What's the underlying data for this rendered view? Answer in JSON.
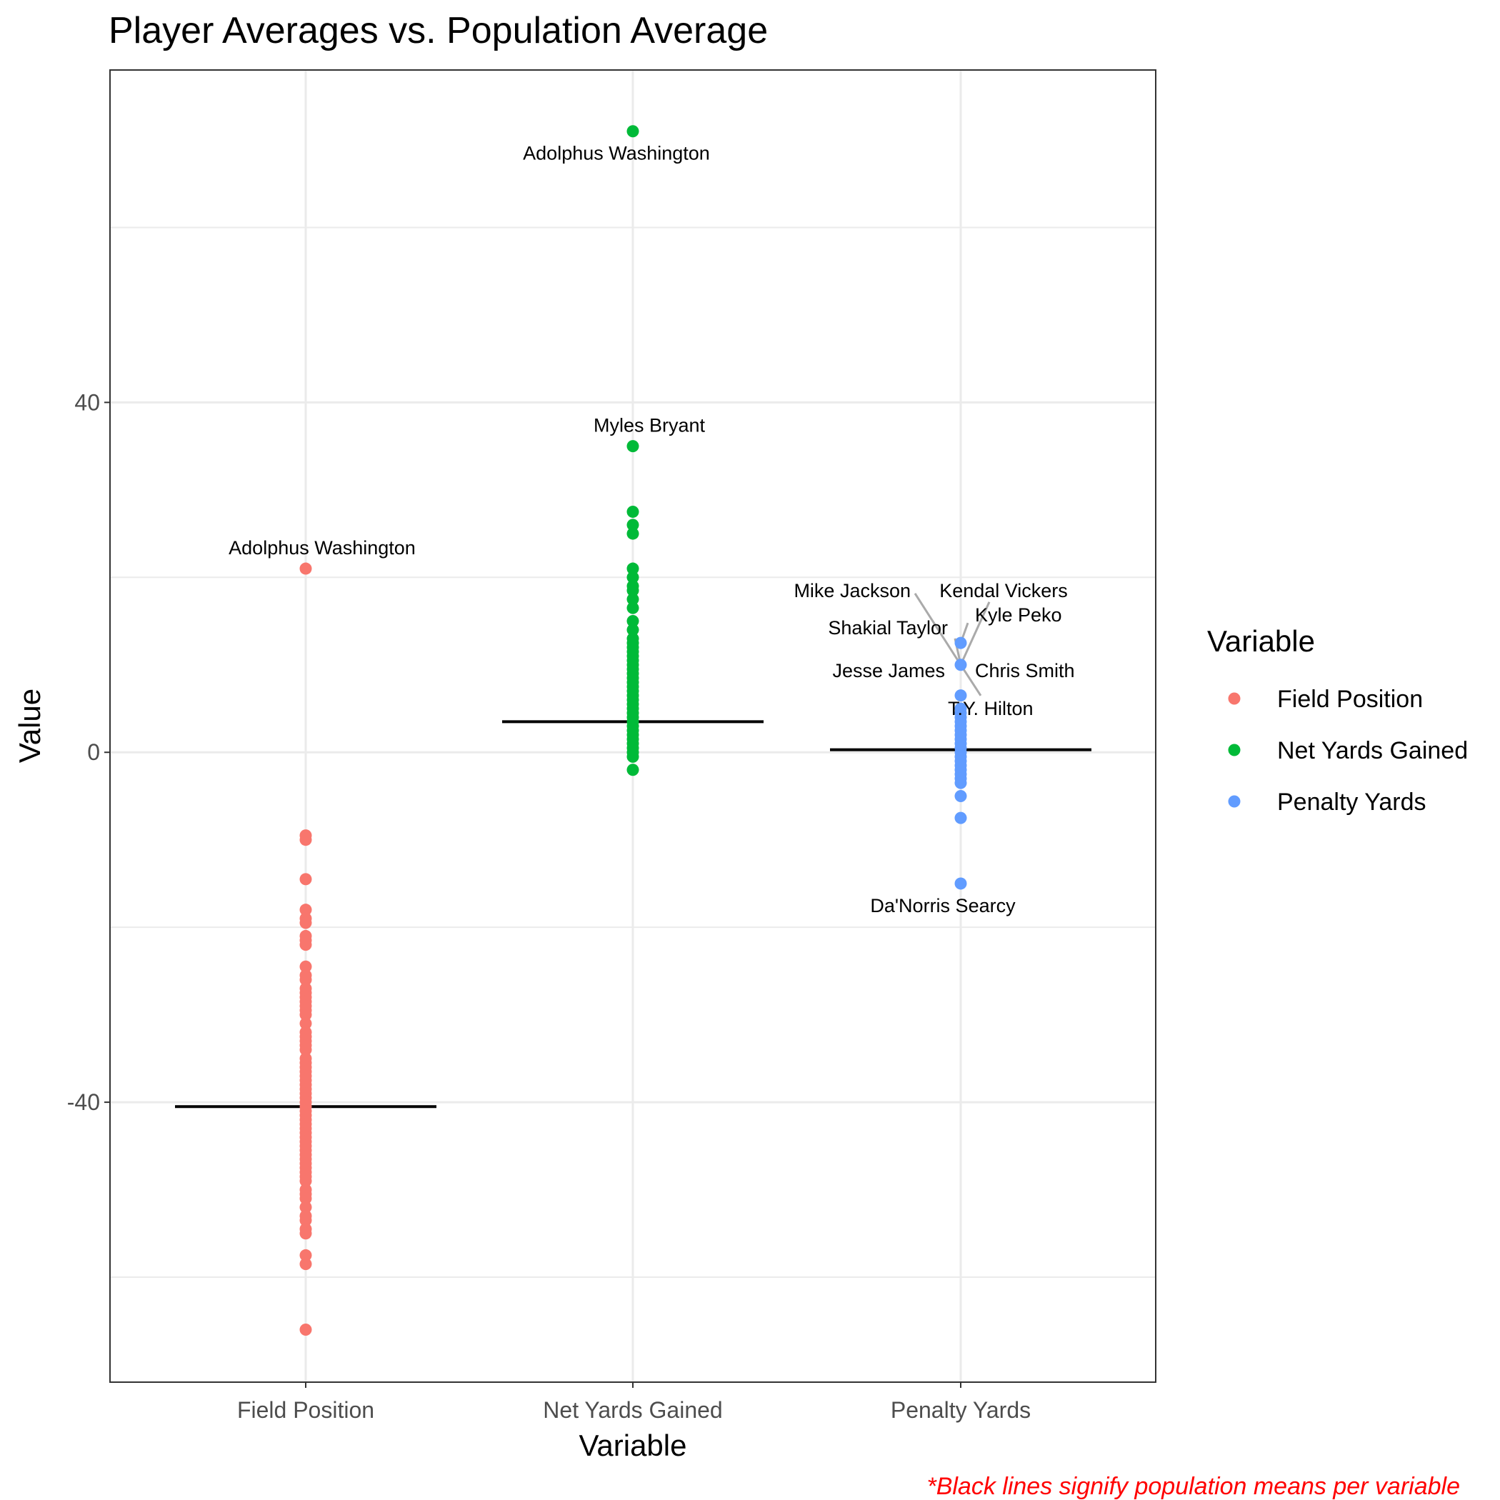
{
  "chart_data": {
    "type": "scatter",
    "title": "Player Averages vs. Population Average",
    "xlabel": "Variable",
    "ylabel": "Value",
    "categories": [
      "Field Position",
      "Net Yards Gained",
      "Penalty Yards"
    ],
    "ylim": [
      -72,
      78
    ],
    "yticks": [
      -40,
      0,
      40
    ],
    "grid": true,
    "legend": {
      "title": "Variable",
      "position": "right",
      "entries": [
        "Field Position",
        "Net Yards Gained",
        "Penalty Yards"
      ]
    },
    "colors": {
      "Field Position": "#F8766D",
      "Net Yards Gained": "#00BA38",
      "Penalty Yards": "#619CFF",
      "mean_line": "#000000",
      "caption": "#ff0000"
    },
    "series": [
      {
        "name": "Field Position",
        "mean": -40.5,
        "values": [
          21,
          -9.5,
          -10,
          -14.5,
          -18,
          -19,
          -19.5,
          -21,
          -21.5,
          -22,
          -24.5,
          -25.5,
          -26,
          -27,
          -27.5,
          -28,
          -28.5,
          -29,
          -29.5,
          -30,
          -31,
          -32,
          -32.5,
          -33,
          -33.5,
          -34,
          -35,
          -35.5,
          -36,
          -36.5,
          -37,
          -37.5,
          -38,
          -38.5,
          -39,
          -39.5,
          -40,
          -40.5,
          -41,
          -41.5,
          -42,
          -42.5,
          -43,
          -43.5,
          -44,
          -44.5,
          -45,
          -45.5,
          -46,
          -46.5,
          -47,
          -47.5,
          -48,
          -48.5,
          -49,
          -50,
          -50.5,
          -51,
          -52,
          -53,
          -53.5,
          -54.5,
          -55,
          -57.5,
          -58.5,
          -66
        ]
      },
      {
        "name": "Net Yards Gained",
        "mean": 3.5,
        "values": [
          71,
          35,
          27.5,
          26,
          25,
          21,
          20,
          19,
          18.5,
          17.5,
          16.5,
          15,
          14,
          13,
          12.5,
          12,
          11.5,
          11,
          10.5,
          10,
          9.5,
          9,
          8.5,
          8,
          7.5,
          7,
          6.5,
          6,
          5.5,
          5,
          4.5,
          4,
          3.5,
          3,
          2.5,
          2,
          1.5,
          1,
          0.5,
          0,
          -0.5,
          -2
        ]
      },
      {
        "name": "Penalty Yards",
        "mean": 0.3,
        "values": [
          12.5,
          10,
          6.5,
          5,
          4.5,
          4,
          3.5,
          3,
          2.5,
          2,
          1.5,
          1,
          0.5,
          0,
          -0.5,
          -1,
          -1.5,
          -2,
          -2.5,
          -3,
          -3.5,
          -5,
          -7.5,
          -15
        ]
      }
    ],
    "annotations": [
      {
        "text": "Adolphus Washington",
        "category": "Field Position",
        "value": 21
      },
      {
        "text": "Adolphus Washington",
        "category": "Net Yards Gained",
        "value": 71
      },
      {
        "text": "Myles Bryant",
        "category": "Net Yards Gained",
        "value": 35
      },
      {
        "text": "Mike Jackson",
        "category": "Penalty Yards",
        "value": 10
      },
      {
        "text": "Kendal Vickers",
        "category": "Penalty Yards",
        "value": 10
      },
      {
        "text": "Shakial Taylor",
        "category": "Penalty Yards",
        "value": 10
      },
      {
        "text": "Kyle Peko",
        "category": "Penalty Yards",
        "value": 12.5
      },
      {
        "text": "Jesse James",
        "category": "Penalty Yards",
        "value": 10
      },
      {
        "text": "Chris Smith",
        "category": "Penalty Yards",
        "value": 10
      },
      {
        "text": "T.Y. Hilton",
        "category": "Penalty Yards",
        "value": 10
      },
      {
        "text": "Da'Norris Searcy",
        "category": "Penalty Yards",
        "value": -15
      }
    ],
    "caption": "*Black lines signify population means per variable"
  }
}
